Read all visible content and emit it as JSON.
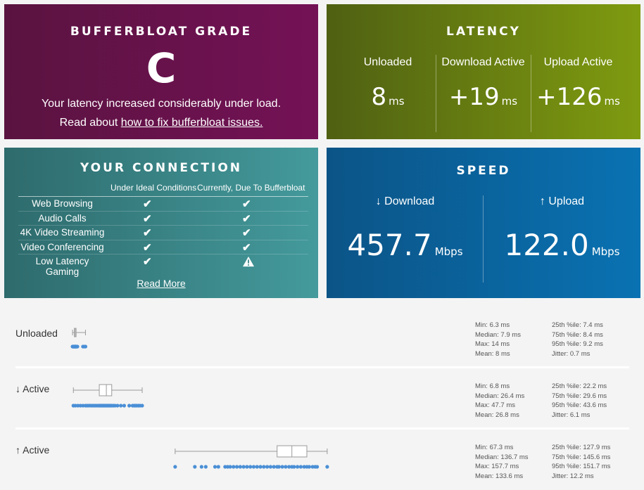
{
  "grade": {
    "title": "BUFFERBLOAT GRADE",
    "letter": "C",
    "description": "Your latency increased considerably under load.",
    "read_prefix": "Read about ",
    "link_text": "how to fix bufferbloat issues."
  },
  "latency": {
    "title": "LATENCY",
    "unit": "ms",
    "columns": [
      {
        "label": "Unloaded",
        "value": "8"
      },
      {
        "label": "Download Active",
        "value": "+19"
      },
      {
        "label": "Upload Active",
        "value": "+126"
      }
    ]
  },
  "connection": {
    "title": "YOUR CONNECTION",
    "header_ideal": "Under Ideal Conditions",
    "header_current": "Currently, Due To Bufferbloat",
    "check": "✔",
    "rows": [
      {
        "name": "Web Browsing",
        "ideal": "ok",
        "current": "ok"
      },
      {
        "name": "Audio Calls",
        "ideal": "ok",
        "current": "ok"
      },
      {
        "name": "4K Video Streaming",
        "ideal": "ok",
        "current": "ok"
      },
      {
        "name": "Video Conferencing",
        "ideal": "ok",
        "current": "ok"
      },
      {
        "name": "Low Latency Gaming",
        "ideal": "ok",
        "current": "warning"
      }
    ],
    "read_more": "Read More"
  },
  "speed": {
    "title": "SPEED",
    "unit": "Mbps",
    "download_label": "↓ Download",
    "download_value": "457.7",
    "upload_label": "↑ Upload",
    "upload_value": "122.0"
  },
  "colors": {
    "dot": "#4a8fd6",
    "box": "#9a9a9a"
  },
  "latency_stats": [
    {
      "label": "Unloaded",
      "min": 6.3,
      "q1": 7.4,
      "median": 7.9,
      "q3": 8.4,
      "max": 14,
      "points": [
        6.3,
        6.5,
        6.7,
        6.9,
        7.0,
        7.2,
        7.4,
        7.5,
        7.6,
        7.8,
        7.9,
        8.0,
        8.1,
        8.2,
        8.3,
        8.4,
        8.6,
        8.8,
        9.2,
        12.5,
        13.2,
        14
      ],
      "stats_left": [
        "Min: 6.3 ms",
        "Median: 7.9 ms",
        "Max: 14 ms",
        "Mean: 8 ms"
      ],
      "stats_right": [
        "25th %ile: 7.4 ms",
        "75th %ile: 8.4 ms",
        "95th %ile: 9.2 ms",
        "Jitter: 0.7 ms"
      ]
    },
    {
      "label": "↓ Active",
      "min": 6.8,
      "q1": 22.2,
      "median": 26.4,
      "q3": 29.6,
      "max": 47.7,
      "points": [
        6.8,
        8,
        9.5,
        11,
        12.5,
        14,
        15,
        16,
        17,
        18,
        19,
        20,
        21,
        22,
        22.5,
        23,
        23.5,
        24,
        24.5,
        25,
        25.5,
        26,
        26.4,
        27,
        27.5,
        28,
        28.5,
        29,
        29.6,
        30.5,
        31.5,
        33,
        35,
        37,
        40,
        42,
        43,
        43.6,
        44.5,
        45.5,
        46.5,
        47.7
      ],
      "stats_left": [
        "Min: 6.8 ms",
        "Median: 26.4 ms",
        "Max: 47.7 ms",
        "Mean: 26.8 ms"
      ],
      "stats_right": [
        "25th %ile: 22.2 ms",
        "75th %ile: 29.6 ms",
        "95th %ile: 43.6 ms",
        "Jitter: 6.1 ms"
      ]
    },
    {
      "label": "↑ Active",
      "min": 67.3,
      "q1": 127.9,
      "median": 136.7,
      "q3": 145.6,
      "max": 157.7,
      "points": [
        67.3,
        79,
        83,
        85.5,
        91,
        93,
        97,
        98.5,
        100,
        102,
        104,
        106,
        108,
        110,
        112,
        114,
        116,
        118,
        120,
        122,
        124,
        126,
        127.9,
        129,
        131,
        133,
        135,
        136.7,
        138,
        140,
        142,
        144,
        145.6,
        147,
        149,
        150.5,
        151.7,
        157.7
      ],
      "stats_left": [
        "Min: 67.3 ms",
        "Median: 136.7 ms",
        "Max: 157.7 ms",
        "Mean: 133.6 ms"
      ],
      "stats_right": [
        "25th %ile: 127.9 ms",
        "75th %ile: 145.6 ms",
        "95th %ile: 151.7 ms",
        "Jitter: 12.2 ms"
      ]
    }
  ]
}
